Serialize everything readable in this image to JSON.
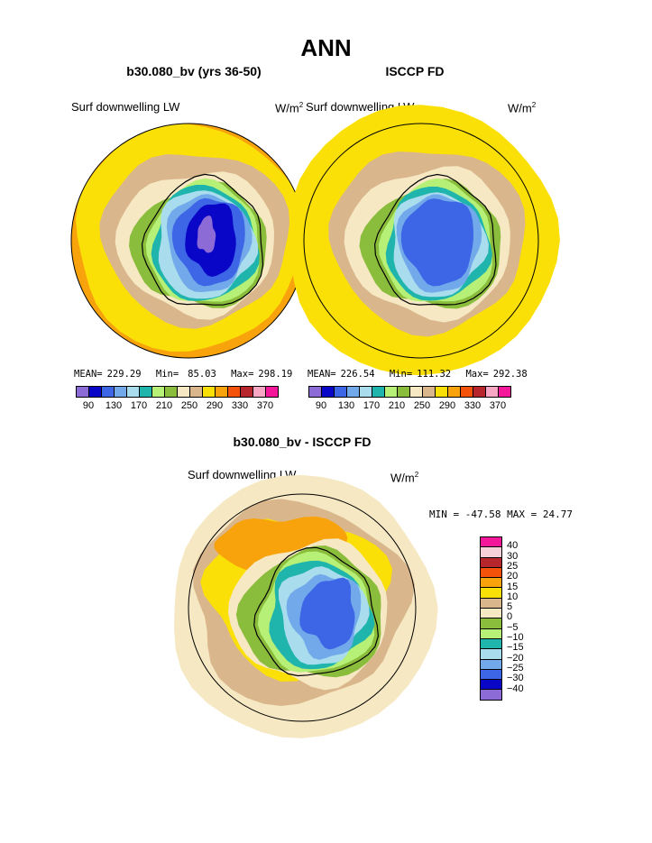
{
  "chart_data": [
    {
      "type": "heatmap",
      "title": "b30.080_bv (yrs 36-50)",
      "variable": "Surf downwelling LW",
      "units": "W/m",
      "units_sup": "2",
      "stats": {
        "mean_label": "MEAN=",
        "mean": "229.29",
        "min_label": "Min=",
        "min": "85.03",
        "max_label": "Max=",
        "max": "298.19"
      },
      "projection": "south-polar-stereographic",
      "fill_levels_from_center": [
        "#8c6bd6",
        "#0a06c8",
        "#3c66e6",
        "#72a9ea",
        "#a9dced",
        "#20b5ac",
        "#b6f077",
        "#8bbd3d",
        "#f6e8c3",
        "#d9b68b",
        "#fbe007",
        "#f8a30b"
      ]
    },
    {
      "type": "heatmap",
      "title": "ISCCP FD",
      "variable": "Surf downwelling LW",
      "units": "W/m",
      "units_sup": "2",
      "stats": {
        "mean_label": "MEAN=",
        "mean": "226.54",
        "min_label": "Min=",
        "min": "111.32",
        "max_label": "Max=",
        "max": "292.38"
      },
      "projection": "south-polar-stereographic",
      "fill_levels_from_center": [
        "#3c66e6",
        "#72a9ea",
        "#a9dced",
        "#20b5ac",
        "#b6f077",
        "#8bbd3d",
        "#f6e8c3",
        "#d9b68b",
        "#fbe007"
      ]
    },
    {
      "type": "heatmap",
      "title": "b30.080_bv - ISCCP FD",
      "variable": "Surf downwelling LW",
      "units": "W/m",
      "units_sup": "2",
      "stats_text": "MIN = -47.58 MAX =  24.77",
      "projection": "south-polar-stereographic",
      "fill_levels_from_center": [
        "#3c66e6",
        "#72a9ea",
        "#a9dced",
        "#20b5ac",
        "#b6f077",
        "#8bbd3d",
        "#f6e8c3",
        "#d9b68b",
        "#fbe007",
        "#f8a30b"
      ]
    }
  ],
  "page": {
    "title": "ANN"
  },
  "colorbar_abs": {
    "colors": [
      "#8c6bd6",
      "#0a06c8",
      "#3c66e6",
      "#72a9ea",
      "#a9dced",
      "#20b5ac",
      "#b6f077",
      "#8bbd3d",
      "#f6e8c3",
      "#d9b68b",
      "#fbe007",
      "#f8a30b",
      "#f4520b",
      "#b8262d",
      "#f7a6c3",
      "#f4179a"
    ],
    "tick_labels": [
      "90",
      "130",
      "170",
      "210",
      "250",
      "290",
      "330",
      "370"
    ]
  },
  "colorbar_diff": {
    "colors_top_to_bottom": [
      "#f4179a",
      "#f7d1d9",
      "#b8262d",
      "#f4520b",
      "#f8a30b",
      "#fbe007",
      "#d9b68b",
      "#f6e8c3",
      "#8bbd3d",
      "#b6f077",
      "#20b5ac",
      "#a9dced",
      "#72a9ea",
      "#3c66e6",
      "#0a06c8",
      "#8c6bd6"
    ],
    "labels_top_to_bottom": [
      "40",
      "30",
      "25",
      "20",
      "15",
      "10",
      "5",
      "0",
      "−5",
      "−10",
      "−15",
      "−20",
      "−25",
      "−30",
      "−40"
    ]
  }
}
